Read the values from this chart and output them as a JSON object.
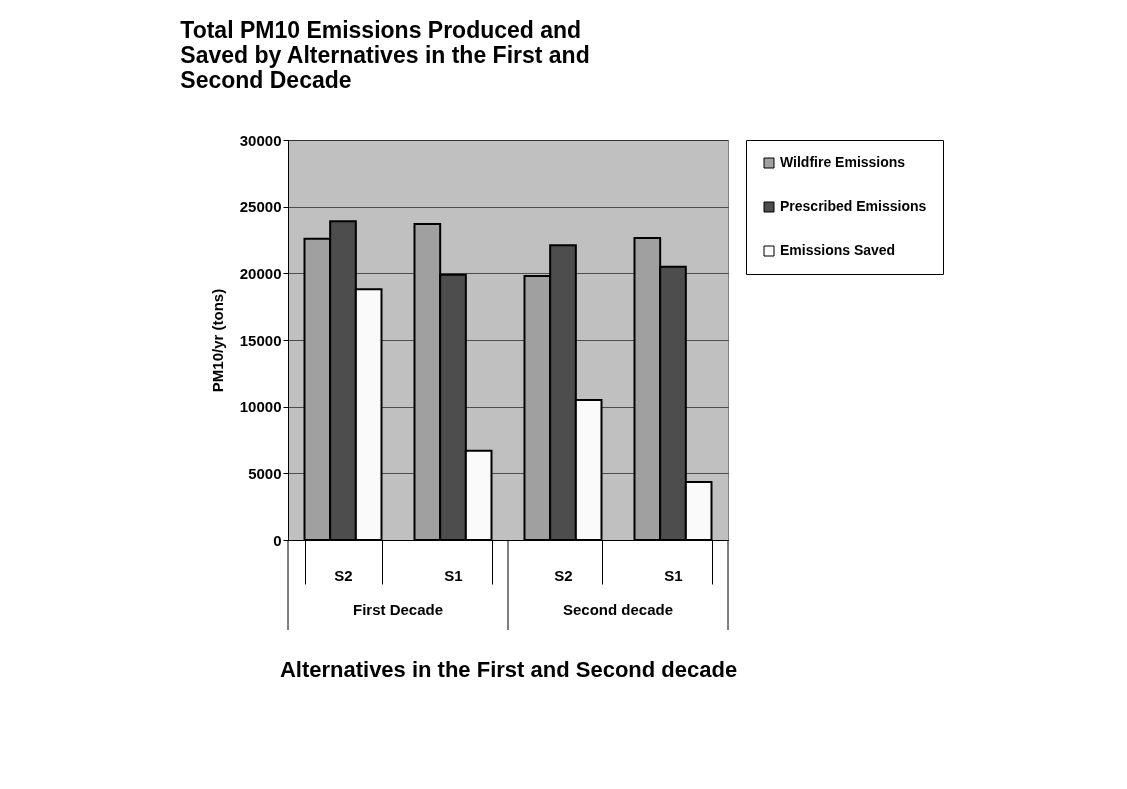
{
  "chart_data": {
    "type": "bar",
    "title": "Total PM10 Emissions Produced and Saved by Alternatives in the First and Second Decade",
    "categories": [
      "S2",
      "S1",
      "S2",
      "S1"
    ],
    "annotations": [
      "First Decade",
      "Second decade"
    ],
    "xlabel": "Alternatives in the First and Second decade",
    "ylabel": "PM10/yr (tons)",
    "series": [
      {
        "name": "Wildfire Emissions",
        "color": "#a0a0a0",
        "values": [
          22600,
          23700,
          19800,
          22650
        ]
      },
      {
        "name": "Prescribed Emissions",
        "color": "#4d4d4d",
        "values": [
          23900,
          19900,
          22100,
          20500
        ]
      },
      {
        "name": "Emissions Saved",
        "color": "#fafafa",
        "values": [
          18800,
          6700,
          10500,
          4350
        ]
      }
    ],
    "ylim": [
      0,
      30000
    ],
    "yticks": [
      0,
      5000,
      10000,
      15000,
      20000,
      25000,
      30000
    ],
    "grid": "y",
    "legend": "right"
  }
}
